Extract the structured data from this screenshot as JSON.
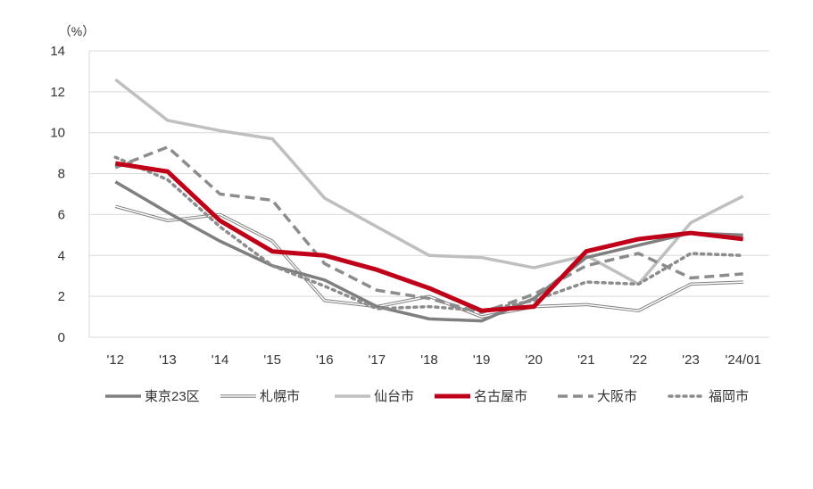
{
  "chart_data": {
    "type": "line",
    "unit_label": "（%）",
    "categories": [
      "'12",
      "'13",
      "'14",
      "'15",
      "'16",
      "'17",
      "'18",
      "'19",
      "'20",
      "'21",
      "'22",
      "'23",
      "'24/01"
    ],
    "y_ticks": [
      "0",
      "2",
      "4",
      "6",
      "8",
      "10",
      "12",
      "14"
    ],
    "ylim": [
      0,
      14
    ],
    "grid": true,
    "legend_position": "bottom",
    "series": [
      {
        "name": "東京23区",
        "color": "#7f7f7f",
        "style": "solid-thick",
        "values": [
          7.6,
          6.1,
          4.7,
          3.5,
          2.8,
          1.5,
          0.9,
          0.8,
          1.9,
          3.9,
          4.5,
          5.1,
          5.0
        ]
      },
      {
        "name": "札幌市",
        "color": "#7f7f7f",
        "style": "double",
        "values": [
          6.4,
          5.7,
          6.0,
          4.7,
          1.8,
          1.5,
          2.0,
          1.0,
          1.5,
          1.6,
          1.3,
          2.6,
          2.7
        ]
      },
      {
        "name": "仙台市",
        "color": "#bfbfbf",
        "style": "solid",
        "values": [
          12.6,
          10.6,
          10.1,
          9.7,
          6.8,
          5.4,
          4.0,
          3.9,
          3.4,
          4.0,
          2.6,
          5.6,
          6.9
        ]
      },
      {
        "name": "名古屋市",
        "color": "#c00018",
        "style": "solid-bold",
        "values": [
          8.5,
          8.1,
          5.7,
          4.2,
          4.0,
          3.3,
          2.4,
          1.3,
          1.5,
          4.2,
          4.8,
          5.1,
          4.8
        ]
      },
      {
        "name": "大阪市",
        "color": "#8c8c8c",
        "style": "dashed",
        "values": [
          8.3,
          9.3,
          7.0,
          6.7,
          3.6,
          2.3,
          1.9,
          1.2,
          2.1,
          3.5,
          4.1,
          2.9,
          3.1
        ]
      },
      {
        "name": "福岡市",
        "color": "#8c8c8c",
        "style": "dotted",
        "values": [
          8.8,
          7.7,
          5.4,
          3.5,
          2.5,
          1.4,
          1.5,
          1.3,
          1.8,
          2.7,
          2.6,
          4.1,
          4.0
        ]
      }
    ]
  }
}
